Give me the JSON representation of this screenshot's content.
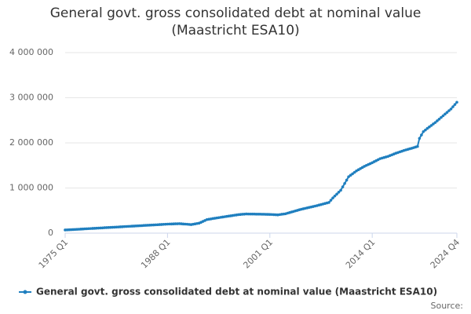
{
  "chart_data": {
    "type": "line",
    "title": "General govt. gross consolidated debt at nominal value (Maastricht ESA10)",
    "source": "Source:",
    "categories": [
      "1975 Q1",
      null,
      null,
      null,
      null,
      null,
      null,
      null,
      null,
      null,
      null,
      null,
      null,
      null,
      null,
      null,
      null,
      null,
      null,
      null,
      null,
      null,
      null,
      null,
      null,
      null,
      null,
      null,
      null,
      null,
      null,
      null,
      null,
      null,
      null,
      null,
      null,
      null,
      null,
      null,
      null,
      null,
      null,
      null,
      null,
      null,
      null,
      null,
      null,
      null,
      null,
      null,
      "1988 Q1",
      null,
      null,
      null,
      null,
      null,
      null,
      null,
      null,
      null,
      null,
      null,
      null,
      null,
      null,
      null,
      null,
      null,
      null,
      null,
      null,
      null,
      null,
      null,
      null,
      null,
      null,
      null,
      null,
      null,
      null,
      null,
      null,
      null,
      null,
      null,
      null,
      null,
      null,
      null,
      null,
      null,
      null,
      null,
      null,
      null,
      null,
      null,
      null,
      null,
      null,
      null,
      "2001 Q1",
      null,
      null,
      null,
      null,
      null,
      null,
      null,
      null,
      null,
      null,
      null,
      null,
      null,
      null,
      null,
      null,
      null,
      null,
      null,
      null,
      null,
      null,
      null,
      null,
      null,
      null,
      null,
      null,
      null,
      null,
      null,
      null,
      null,
      null,
      null,
      null,
      null,
      null,
      null,
      null,
      null,
      null,
      null,
      null,
      null,
      null,
      null,
      null,
      null,
      null,
      null,
      "2014 Q1",
      null,
      null,
      null,
      null,
      null,
      null,
      null,
      null,
      null,
      null,
      null,
      null,
      null,
      null,
      null,
      null,
      null,
      null,
      null,
      null,
      null,
      null,
      null,
      null,
      null,
      null,
      null,
      null,
      null,
      null,
      null,
      null,
      null,
      null,
      null,
      null,
      null,
      null,
      null,
      null,
      null,
      null,
      "2024 Q4"
    ],
    "series": [
      {
        "name": "General govt. gross consolidated debt at nominal value (Maastricht ESA10)",
        "color": "#1f7fbf",
        "values": [
          70000,
          72000,
          75000,
          77000,
          80000,
          82000,
          85000,
          87000,
          90000,
          92000,
          95000,
          97000,
          100000,
          102000,
          105000,
          107000,
          110000,
          112000,
          115000,
          117000,
          120000,
          122000,
          125000,
          127000,
          130000,
          132000,
          135000,
          137000,
          140000,
          142000,
          145000,
          147000,
          150000,
          152000,
          155000,
          157000,
          160000,
          162000,
          165000,
          167000,
          170000,
          172000,
          175000,
          177000,
          180000,
          182000,
          185000,
          187000,
          190000,
          192000,
          195000,
          197000,
          200000,
          202000,
          203000,
          205000,
          207000,
          208000,
          210000,
          207000,
          203000,
          200000,
          197000,
          193000,
          190000,
          198000,
          205000,
          213000,
          220000,
          240000,
          260000,
          280000,
          300000,
          308000,
          315000,
          323000,
          330000,
          337000,
          343000,
          350000,
          357000,
          363000,
          370000,
          377000,
          383000,
          390000,
          397000,
          403000,
          410000,
          414000,
          418000,
          421000,
          425000,
          424000,
          423000,
          423000,
          422000,
          421000,
          420000,
          420000,
          419000,
          418000,
          417000,
          416000,
          415000,
          413000,
          410000,
          408000,
          405000,
          411000,
          418000,
          424000,
          430000,
          443000,
          455000,
          468000,
          480000,
          493000,
          505000,
          518000,
          530000,
          540000,
          550000,
          560000,
          570000,
          580000,
          590000,
          600000,
          610000,
          622000,
          633000,
          645000,
          657000,
          668000,
          680000,
          730000,
          780000,
          823000,
          865000,
          908000,
          950000,
          1025000,
          1100000,
          1175000,
          1250000,
          1283000,
          1315000,
          1348000,
          1380000,
          1405000,
          1430000,
          1455000,
          1480000,
          1500000,
          1520000,
          1540000,
          1560000,
          1583000,
          1605000,
          1628000,
          1650000,
          1663000,
          1675000,
          1688000,
          1700000,
          1718000,
          1735000,
          1753000,
          1770000,
          1785000,
          1800000,
          1815000,
          1830000,
          1843000,
          1855000,
          1868000,
          1880000,
          1893000,
          1907000,
          1920000,
          2100000,
          2175000,
          2250000,
          2285000,
          2320000,
          2353000,
          2385000,
          2418000,
          2450000,
          2488000,
          2525000,
          2563000,
          2600000,
          2638000,
          2675000,
          2713000,
          2750000,
          2800000,
          2850000,
          2900000
        ]
      }
    ],
    "ylim": [
      0,
      4000000
    ],
    "yticks": [
      0,
      {
        "value": 1000000,
        "label": "1 000 000"
      },
      {
        "value": 2000000,
        "label": "2 000 000"
      },
      {
        "value": 3000000,
        "label": "3 000 000"
      },
      {
        "value": 4000000,
        "label": "4 000 000"
      }
    ],
    "grid": true,
    "legend": "bottom"
  }
}
